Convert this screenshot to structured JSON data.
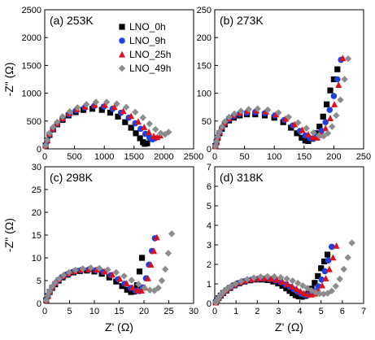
{
  "series_colors": {
    "LNO_0h": "#000000",
    "LNO_9h": "#1f3fe0",
    "LNO_25h": "#e0101a",
    "LNO_49h": "#8c8c8c"
  },
  "chart_data": [
    {
      "type": "scatter",
      "panel_label": "(a) 253K",
      "xlabel": "",
      "ylabel": "-Z\" (Ω)",
      "xlim": [
        0,
        2500
      ],
      "ylim": [
        0,
        2500
      ],
      "xticks": [
        "0",
        "500",
        "1000",
        "1500",
        "2000",
        "2500"
      ],
      "yticks": [
        "0",
        "500",
        "1000",
        "1500",
        "2000",
        "2500"
      ],
      "legend": {
        "placement": "top-right",
        "entries": [
          "LNO_0h",
          "LNO_9h",
          "LNO_25h",
          "LNO_49h"
        ]
      },
      "series": [
        {
          "name": "LNO_0h",
          "marker": "square",
          "x": [
            15,
            40,
            80,
            140,
            210,
            300,
            400,
            520,
            650,
            800,
            960,
            1100,
            1230,
            1350,
            1450,
            1530,
            1600,
            1650,
            1680,
            1720
          ],
          "y": [
            60,
            150,
            250,
            350,
            440,
            520,
            600,
            660,
            700,
            720,
            700,
            650,
            580,
            480,
            380,
            280,
            190,
            120,
            90,
            100
          ]
        },
        {
          "name": "LNO_9h",
          "marker": "circle",
          "x": [
            15,
            40,
            80,
            140,
            210,
            300,
            410,
            530,
            670,
            830,
            990,
            1140,
            1280,
            1410,
            1520,
            1610,
            1690,
            1760,
            1810,
            1850
          ],
          "y": [
            60,
            150,
            260,
            360,
            450,
            540,
            620,
            690,
            740,
            770,
            760,
            720,
            650,
            560,
            460,
            360,
            270,
            200,
            170,
            190
          ]
        },
        {
          "name": "LNO_25h",
          "marker": "triangle",
          "x": [
            15,
            40,
            80,
            140,
            210,
            300,
            410,
            540,
            680,
            840,
            1010,
            1170,
            1320,
            1450,
            1570,
            1670,
            1750,
            1830,
            1890,
            1940
          ],
          "y": [
            60,
            160,
            270,
            370,
            460,
            550,
            640,
            710,
            760,
            790,
            790,
            750,
            680,
            590,
            490,
            390,
            300,
            230,
            210,
            240
          ]
        },
        {
          "name": "LNO_49h",
          "marker": "diamond",
          "x": [
            15,
            40,
            80,
            140,
            210,
            300,
            420,
            550,
            700,
            860,
            1040,
            1210,
            1370,
            1520,
            1650,
            1760,
            1860,
            1950,
            2020,
            2080
          ],
          "y": [
            60,
            160,
            280,
            390,
            480,
            580,
            670,
            740,
            800,
            840,
            840,
            810,
            750,
            660,
            560,
            450,
            350,
            280,
            260,
            300
          ]
        }
      ]
    },
    {
      "type": "scatter",
      "panel_label": "(b) 273K",
      "xlabel": "",
      "ylabel": "",
      "xlim": [
        0,
        250
      ],
      "ylim": [
        0,
        250
      ],
      "xticks": [
        "0",
        "50",
        "100",
        "150",
        "200",
        "250"
      ],
      "yticks": [
        "0",
        "50",
        "100",
        "150",
        "200",
        "250"
      ],
      "series": [
        {
          "name": "LNO_0h",
          "marker": "square",
          "x": [
            1,
            3,
            5,
            8,
            12,
            17,
            24,
            32,
            42,
            54,
            68,
            84,
            100,
            115,
            128,
            138,
            146,
            152,
            157,
            163,
            170,
            176,
            182,
            188,
            194,
            200,
            206
          ],
          "y": [
            5,
            12,
            20,
            28,
            36,
            44,
            51,
            56,
            60,
            62,
            62,
            60,
            56,
            48,
            38,
            28,
            20,
            15,
            14,
            18,
            28,
            40,
            58,
            80,
            105,
            125,
            143
          ]
        },
        {
          "name": "LNO_9h",
          "marker": "circle",
          "x": [
            1,
            3,
            5,
            8,
            12,
            17,
            24,
            32,
            42,
            54,
            68,
            84,
            101,
            117,
            131,
            143,
            152,
            160,
            166,
            172,
            179,
            186,
            193,
            200,
            206,
            212
          ],
          "y": [
            5,
            12,
            20,
            29,
            38,
            46,
            53,
            59,
            63,
            65,
            66,
            64,
            60,
            52,
            42,
            32,
            24,
            19,
            18,
            22,
            32,
            48,
            70,
            95,
            125,
            160
          ]
        },
        {
          "name": "LNO_25h",
          "marker": "triangle",
          "x": [
            1,
            3,
            5,
            8,
            12,
            17,
            24,
            32,
            42,
            55,
            70,
            86,
            103,
            119,
            134,
            147,
            157,
            165,
            172,
            179,
            186,
            194,
            201,
            208,
            215
          ],
          "y": [
            5,
            12,
            21,
            30,
            39,
            47,
            55,
            61,
            65,
            68,
            69,
            67,
            62,
            54,
            44,
            34,
            26,
            21,
            20,
            25,
            37,
            55,
            80,
            115,
            163
          ]
        },
        {
          "name": "LNO_49h",
          "marker": "diamond",
          "x": [
            1,
            3,
            5,
            8,
            12,
            17,
            24,
            33,
            44,
            57,
            72,
            89,
            107,
            124,
            140,
            154,
            166,
            175,
            183,
            190,
            197,
            204,
            211,
            218,
            224
          ],
          "y": [
            5,
            13,
            22,
            31,
            40,
            49,
            57,
            63,
            68,
            71,
            72,
            70,
            65,
            57,
            47,
            37,
            29,
            24,
            23,
            28,
            40,
            60,
            88,
            125,
            162
          ]
        }
      ]
    },
    {
      "type": "scatter",
      "panel_label": "(c) 298K",
      "xlabel": "Z' (Ω)",
      "ylabel": "-Z\" (Ω)",
      "xlim": [
        0,
        30
      ],
      "ylim": [
        0,
        30
      ],
      "xticks": [
        "0",
        "5",
        "10",
        "15",
        "20",
        "25",
        "30"
      ],
      "yticks": [
        "0",
        "5",
        "10",
        "15",
        "20",
        "25",
        "30"
      ],
      "series": [
        {
          "name": "LNO_0h",
          "marker": "square",
          "x": [
            0.3,
            0.6,
            1,
            1.5,
            2.1,
            2.8,
            3.6,
            4.6,
            5.8,
            7.1,
            8.5,
            10,
            11.5,
            13,
            14.4,
            15.6,
            16.6,
            17.4,
            18,
            18.6,
            19.1,
            19.6
          ],
          "y": [
            0.7,
            1.6,
            2.5,
            3.4,
            4.2,
            5,
            5.7,
            6.3,
            6.8,
            7.1,
            7.2,
            7,
            6.5,
            5.7,
            4.8,
            3.8,
            3,
            2.5,
            2.6,
            4,
            7,
            10
          ]
        },
        {
          "name": "LNO_9h",
          "marker": "circle",
          "x": [
            0.3,
            0.6,
            1,
            1.5,
            2.1,
            2.8,
            3.7,
            4.7,
            5.9,
            7.3,
            8.8,
            10.3,
            11.8,
            13.3,
            14.8,
            16.1,
            17.3,
            18.3,
            19.1,
            19.8,
            20.4,
            21,
            21.6,
            22.2
          ],
          "y": [
            0.7,
            1.6,
            2.6,
            3.5,
            4.4,
            5.2,
            5.9,
            6.5,
            7,
            7.3,
            7.4,
            7.3,
            6.9,
            6.2,
            5.3,
            4.3,
            3.4,
            2.8,
            2.7,
            3.5,
            5.5,
            8.5,
            11.5,
            14.3
          ]
        },
        {
          "name": "LNO_25h",
          "marker": "triangle",
          "x": [
            0.3,
            0.6,
            1,
            1.5,
            2.1,
            2.8,
            3.7,
            4.8,
            6,
            7.4,
            8.9,
            10.5,
            12.1,
            13.6,
            15.1,
            16.5,
            17.7,
            18.7,
            19.5,
            20.2,
            20.8,
            21.4,
            22,
            22.6
          ],
          "y": [
            0.7,
            1.6,
            2.6,
            3.6,
            4.5,
            5.3,
            6,
            6.6,
            7.1,
            7.4,
            7.5,
            7.4,
            7,
            6.3,
            5.4,
            4.4,
            3.5,
            2.9,
            2.8,
            3.5,
            5.5,
            8.5,
            11.5,
            14.5
          ]
        },
        {
          "name": "LNO_49h",
          "marker": "diamond",
          "x": [
            0.3,
            0.6,
            1,
            1.5,
            2.1,
            2.9,
            3.8,
            4.9,
            6.2,
            7.7,
            9.3,
            11,
            12.7,
            14.4,
            16,
            17.5,
            18.9,
            20.1,
            21.2,
            22.1,
            22.9,
            23.6,
            24.3,
            24.9,
            25.6
          ],
          "y": [
            0.7,
            1.7,
            2.7,
            3.7,
            4.6,
            5.4,
            6.2,
            6.8,
            7.3,
            7.6,
            7.8,
            7.7,
            7.4,
            6.8,
            6,
            5.1,
            4.2,
            3.4,
            2.9,
            2.8,
            3.4,
            5,
            7.5,
            11,
            15.3
          ]
        }
      ]
    },
    {
      "type": "scatter",
      "panel_label": "(d) 318K",
      "xlabel": "Z' (Ω)",
      "ylabel": "",
      "xlim": [
        0,
        7
      ],
      "ylim": [
        0,
        7
      ],
      "xticks": [
        "0",
        "1",
        "2",
        "3",
        "4",
        "5",
        "6",
        "7"
      ],
      "yticks": [
        "0",
        "1",
        "2",
        "3",
        "4",
        "5",
        "6",
        "7"
      ],
      "series": [
        {
          "name": "LNO_0h",
          "marker": "square",
          "x": [
            0.05,
            0.1,
            0.18,
            0.28,
            0.4,
            0.55,
            0.72,
            0.92,
            1.15,
            1.4,
            1.67,
            1.95,
            2.23,
            2.5,
            2.75,
            2.98,
            3.18,
            3.36,
            3.52,
            3.66,
            3.8,
            3.95,
            4.1,
            4.25,
            4.4,
            4.55,
            4.7,
            4.85,
            5,
            5.15,
            5.3
          ],
          "y": [
            0.05,
            0.15,
            0.27,
            0.4,
            0.53,
            0.66,
            0.79,
            0.92,
            1.03,
            1.12,
            1.18,
            1.22,
            1.22,
            1.19,
            1.12,
            1.02,
            0.9,
            0.77,
            0.64,
            0.52,
            0.42,
            0.36,
            0.34,
            0.38,
            0.5,
            0.75,
            1.05,
            1.4,
            1.8,
            2.15,
            2.5
          ]
        },
        {
          "name": "LNO_9h",
          "marker": "circle",
          "x": [
            0.05,
            0.1,
            0.18,
            0.28,
            0.4,
            0.55,
            0.73,
            0.94,
            1.18,
            1.44,
            1.72,
            2.01,
            2.3,
            2.58,
            2.85,
            3.1,
            3.33,
            3.54,
            3.73,
            3.9,
            4.06,
            4.22,
            4.38,
            4.54,
            4.7,
            4.86,
            5.02,
            5.18,
            5.34,
            5.5
          ],
          "y": [
            0.05,
            0.15,
            0.27,
            0.41,
            0.55,
            0.69,
            0.82,
            0.95,
            1.06,
            1.15,
            1.21,
            1.25,
            1.26,
            1.23,
            1.17,
            1.08,
            0.96,
            0.84,
            0.71,
            0.59,
            0.49,
            0.43,
            0.42,
            0.48,
            0.62,
            0.88,
            1.22,
            1.65,
            2.2,
            2.9
          ]
        },
        {
          "name": "LNO_25h",
          "marker": "triangle",
          "x": [
            0.05,
            0.1,
            0.18,
            0.28,
            0.4,
            0.55,
            0.73,
            0.95,
            1.2,
            1.47,
            1.76,
            2.06,
            2.36,
            2.65,
            2.93,
            3.19,
            3.43,
            3.65,
            3.85,
            4.03,
            4.2,
            4.37,
            4.54,
            4.71,
            4.88,
            5.05,
            5.22,
            5.39,
            5.56,
            5.72
          ],
          "y": [
            0.05,
            0.15,
            0.28,
            0.42,
            0.56,
            0.7,
            0.84,
            0.97,
            1.08,
            1.17,
            1.24,
            1.28,
            1.29,
            1.26,
            1.2,
            1.11,
            0.99,
            0.87,
            0.74,
            0.62,
            0.52,
            0.46,
            0.45,
            0.5,
            0.65,
            0.92,
            1.28,
            1.75,
            2.35,
            2.95
          ]
        },
        {
          "name": "LNO_49h",
          "marker": "diamond",
          "x": [
            0.05,
            0.1,
            0.18,
            0.28,
            0.41,
            0.57,
            0.76,
            0.98,
            1.24,
            1.53,
            1.84,
            2.16,
            2.48,
            2.8,
            3.1,
            3.39,
            3.66,
            3.91,
            4.14,
            4.35,
            4.55,
            4.74,
            4.93,
            5.12,
            5.31,
            5.5,
            5.69,
            5.88,
            6.07,
            6.26,
            6.45
          ],
          "y": [
            0.05,
            0.16,
            0.29,
            0.44,
            0.59,
            0.74,
            0.88,
            1.01,
            1.13,
            1.23,
            1.31,
            1.36,
            1.38,
            1.37,
            1.33,
            1.26,
            1.16,
            1.04,
            0.91,
            0.78,
            0.66,
            0.56,
            0.5,
            0.48,
            0.52,
            0.64,
            0.88,
            1.25,
            1.75,
            2.35,
            3.1
          ]
        }
      ]
    }
  ]
}
